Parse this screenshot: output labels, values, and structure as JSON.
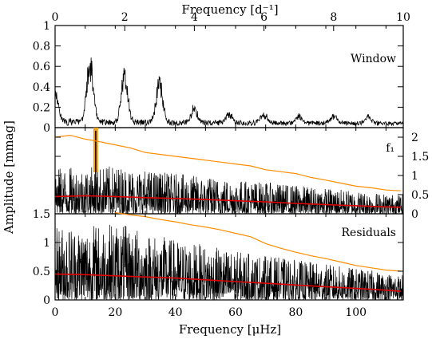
{
  "figure": {
    "top_axis_label": "Frequency [d⁻¹]",
    "bottom_axis_label": "Frequency [μHz]",
    "y_axis_label": "Amplitude [mmag]"
  },
  "chart_data": [
    {
      "type": "line",
      "panel": "window",
      "label": "Window",
      "xlabel_top": "Frequency [d⁻¹]",
      "xlim_top": [
        0,
        10
      ],
      "x_ticks_top": [
        "0",
        "2",
        "4",
        "6",
        "8",
        "10"
      ],
      "xlim": [
        0,
        115.74
      ],
      "ylim": [
        0,
        1.0
      ],
      "y_ticks": [
        "0",
        "0.2",
        "0.4",
        "0.6",
        "0.8",
        "1"
      ],
      "series": [
        {
          "color": "#000000",
          "peaks": [
            {
              "x": 0.0,
              "y": 0.35
            },
            {
              "x": 11.6,
              "y": 0.7
            },
            {
              "x": 23.1,
              "y": 0.58
            },
            {
              "x": 34.7,
              "y": 0.5
            },
            {
              "x": 46.3,
              "y": 0.17
            },
            {
              "x": 57.9,
              "y": 0.1
            },
            {
              "x": 69.4,
              "y": 0.1
            },
            {
              "x": 81.0,
              "y": 0.09
            },
            {
              "x": 92.6,
              "y": 0.09
            },
            {
              "x": 104.2,
              "y": 0.08
            }
          ]
        }
      ]
    },
    {
      "type": "line",
      "panel": "f1",
      "label": "f₁",
      "xlim": [
        0,
        115.74
      ],
      "ylim": [
        0,
        2.25
      ],
      "y_ticks_right": [
        "0",
        "0.5",
        "1",
        "1.5",
        "2"
      ],
      "highlight": {
        "x": 13.5,
        "y": 2.25,
        "color": "#f0a020"
      },
      "series": [
        {
          "color": "#ff8c00",
          "x": [
            0,
            5,
            10,
            15,
            20,
            25,
            30,
            35,
            40,
            45,
            50,
            55,
            60,
            65,
            70,
            75,
            80,
            85,
            90,
            95,
            100,
            105,
            110,
            115
          ],
          "y": [
            2.0,
            2.05,
            1.95,
            1.88,
            1.8,
            1.72,
            1.6,
            1.55,
            1.5,
            1.45,
            1.4,
            1.35,
            1.3,
            1.25,
            1.15,
            1.1,
            1.05,
            0.95,
            0.88,
            0.8,
            0.72,
            0.68,
            0.62,
            0.6
          ]
        },
        {
          "color": "#e00000",
          "x": [
            0,
            10,
            20,
            30,
            40,
            50,
            60,
            70,
            80,
            90,
            100,
            110,
            115
          ],
          "y": [
            0.45,
            0.47,
            0.45,
            0.42,
            0.4,
            0.37,
            0.34,
            0.31,
            0.27,
            0.24,
            0.21,
            0.18,
            0.17
          ]
        },
        {
          "color": "#000000",
          "noise_envelope": {
            "x": [
              0,
              20,
              40,
              60,
              80,
              100,
              115
            ],
            "y": [
              1.2,
              1.25,
              1.05,
              0.9,
              0.75,
              0.6,
              0.5
            ]
          }
        }
      ]
    },
    {
      "type": "line",
      "panel": "residuals",
      "label": "Residuals",
      "xlabel": "Frequency [μHz]",
      "xlim": [
        0,
        115.74
      ],
      "x_ticks": [
        "0",
        "20",
        "40",
        "60",
        "80",
        "100"
      ],
      "ylim": [
        0,
        1.5
      ],
      "y_ticks": [
        "0",
        "0.5",
        "1",
        "1.5"
      ],
      "series": [
        {
          "color": "#ff8c00",
          "x": [
            20,
            25,
            30,
            35,
            40,
            45,
            50,
            55,
            60,
            65,
            70,
            75,
            80,
            85,
            90,
            95,
            100,
            105,
            110,
            115
          ],
          "y": [
            1.52,
            1.48,
            1.45,
            1.4,
            1.36,
            1.31,
            1.27,
            1.22,
            1.16,
            1.1,
            0.98,
            0.9,
            0.83,
            0.77,
            0.72,
            0.66,
            0.6,
            0.56,
            0.52,
            0.5
          ]
        },
        {
          "color": "#e00000",
          "x": [
            0,
            10,
            20,
            30,
            40,
            50,
            60,
            70,
            80,
            90,
            100,
            110,
            115
          ],
          "y": [
            0.45,
            0.44,
            0.42,
            0.4,
            0.38,
            0.35,
            0.32,
            0.29,
            0.26,
            0.23,
            0.2,
            0.17,
            0.15
          ]
        },
        {
          "color": "#000000",
          "noise_envelope": {
            "x": [
              0,
              20,
              40,
              60,
              80,
              100,
              115
            ],
            "y": [
              1.3,
              1.35,
              1.05,
              0.85,
              0.7,
              0.55,
              0.45
            ]
          }
        }
      ]
    }
  ]
}
